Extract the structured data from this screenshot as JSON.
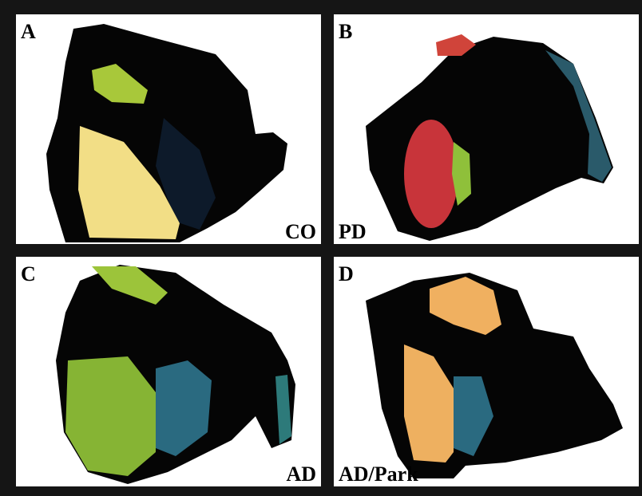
{
  "panels": [
    {
      "letter": "A",
      "label": "CO"
    },
    {
      "letter": "B",
      "label": "PD"
    },
    {
      "letter": "C",
      "label": "AD"
    },
    {
      "letter": "D",
      "label": "AD/Park"
    }
  ]
}
